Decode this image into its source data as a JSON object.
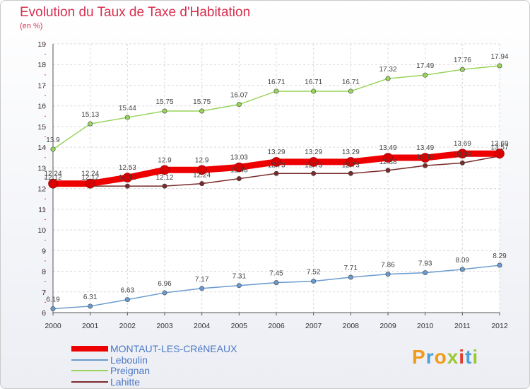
{
  "title": "Evolution du Taux de Taxe d'Habitation",
  "subtitle": "(en %)",
  "logo": "Proxiti",
  "chart_data": {
    "type": "line",
    "x": [
      "2000",
      "2001",
      "2002",
      "2003",
      "2004",
      "2005",
      "2006",
      "2007",
      "2008",
      "2009",
      "2010",
      "2011",
      "2012"
    ],
    "ylim": [
      6,
      19
    ],
    "yticks": [
      6,
      7,
      8,
      9,
      10,
      11,
      12,
      13,
      14,
      15,
      16,
      17,
      18,
      19
    ],
    "grid": true,
    "legend_position": "bottom-left",
    "series": [
      {
        "name": "MONTAUT-LES-CRéNEAUX",
        "color": "#ee0000",
        "values": [
          12.24,
          12.24,
          12.53,
          12.9,
          12.9,
          13.03,
          13.29,
          13.29,
          13.29,
          13.49,
          13.49,
          13.69,
          13.69
        ]
      },
      {
        "name": "Leboulin",
        "color": "#6a9bcf",
        "values": [
          6.19,
          6.31,
          6.63,
          6.96,
          7.17,
          7.31,
          7.45,
          7.52,
          7.71,
          7.86,
          7.93,
          8.09,
          8.29
        ]
      },
      {
        "name": "Preignan",
        "color": "#99d45c",
        "values": [
          13.9,
          15.13,
          15.44,
          15.75,
          15.75,
          16.07,
          16.71,
          16.71,
          16.71,
          17.32,
          17.49,
          17.76,
          17.94
        ]
      },
      {
        "name": "Lahitte",
        "color": "#7a2a2a",
        "values": [
          12.12,
          12.12,
          12.12,
          12.12,
          12.24,
          12.48,
          12.73,
          12.73,
          12.73,
          12.88,
          13.11,
          13.24,
          13.57
        ]
      }
    ]
  }
}
